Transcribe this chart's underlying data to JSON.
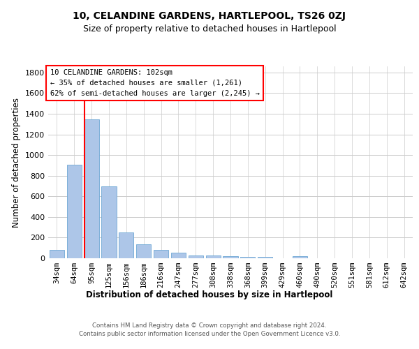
{
  "title1": "10, CELANDINE GARDENS, HARTLEPOOL, TS26 0ZJ",
  "title2": "Size of property relative to detached houses in Hartlepool",
  "xlabel_bottom": "Distribution of detached houses by size in Hartlepool",
  "ylabel": "Number of detached properties",
  "footnote": "Contains HM Land Registry data © Crown copyright and database right 2024.\nContains public sector information licensed under the Open Government Licence v3.0.",
  "categories": [
    "34sqm",
    "64sqm",
    "95sqm",
    "125sqm",
    "156sqm",
    "186sqm",
    "216sqm",
    "247sqm",
    "277sqm",
    "308sqm",
    "338sqm",
    "368sqm",
    "399sqm",
    "429sqm",
    "460sqm",
    "490sqm",
    "520sqm",
    "551sqm",
    "581sqm",
    "612sqm",
    "642sqm"
  ],
  "values": [
    80,
    905,
    1345,
    700,
    248,
    135,
    80,
    55,
    30,
    25,
    20,
    15,
    15,
    0,
    20,
    0,
    0,
    0,
    0,
    0,
    0
  ],
  "bar_color": "#adc6e8",
  "bar_edgecolor": "#6fa8d4",
  "red_line_index": 2,
  "annotation_lines": [
    "10 CELANDINE GARDENS: 102sqm",
    "← 35% of detached houses are smaller (1,261)",
    "62% of semi-detached houses are larger (2,245) →"
  ],
  "ylim": [
    0,
    1860
  ],
  "yticks": [
    0,
    200,
    400,
    600,
    800,
    1000,
    1200,
    1400,
    1600,
    1800
  ],
  "bg_color": "#ffffff",
  "grid_color": "#cccccc",
  "title1_fontsize": 10,
  "title2_fontsize": 9
}
